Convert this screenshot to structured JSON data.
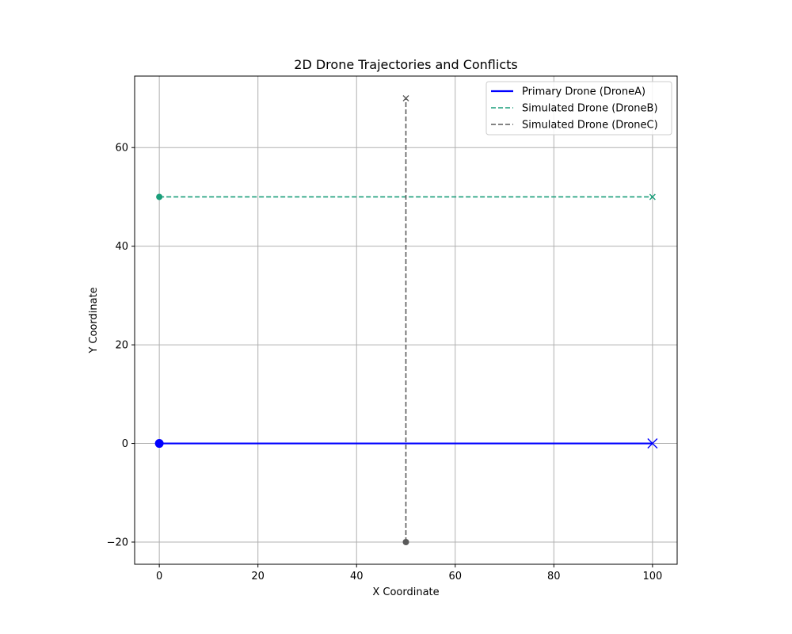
{
  "chart_data": {
    "type": "line",
    "title": "2D Drone Trajectories and Conflicts",
    "xlabel": "X Coordinate",
    "ylabel": "Y Coordinate",
    "xlim": [
      -5,
      105
    ],
    "ylim": [
      -24.5,
      74.5
    ],
    "x_ticks": [
      0,
      20,
      40,
      60,
      80,
      100
    ],
    "y_ticks": [
      -20,
      0,
      20,
      40,
      60
    ],
    "x_tick_labels": [
      "0",
      "20",
      "40",
      "60",
      "80",
      "100"
    ],
    "y_tick_labels": [
      "−20",
      "0",
      "20",
      "40",
      "60"
    ],
    "grid": true,
    "legend_position": "top-right",
    "series": [
      {
        "name": "Primary Drone (DroneA)",
        "color": "#0000ff",
        "line_style": "solid",
        "points": [
          [
            0,
            0
          ],
          [
            100,
            0
          ]
        ],
        "start_marker": "circle",
        "end_marker": "x"
      },
      {
        "name": "Simulated Drone (DroneB)",
        "color": "#1a9e7a",
        "line_style": "dashed",
        "points": [
          [
            0,
            50
          ],
          [
            100,
            50
          ]
        ],
        "start_marker": "circle",
        "end_marker": "x"
      },
      {
        "name": "Simulated Drone (DroneC)",
        "color": "#5a5a5a",
        "line_style": "dashed",
        "points": [
          [
            50,
            -20
          ],
          [
            50,
            70
          ]
        ],
        "start_marker": "circle",
        "end_marker": "x"
      }
    ]
  }
}
